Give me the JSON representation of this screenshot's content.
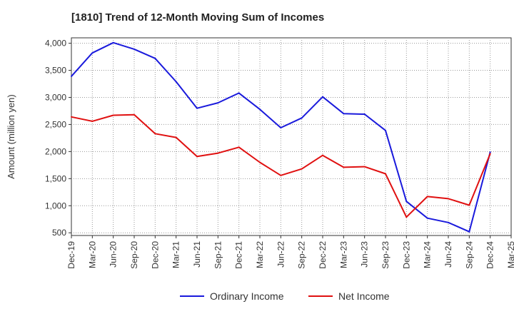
{
  "chart_data": {
    "type": "line",
    "title": "[1810]  Trend of 12-Month Moving Sum of Incomes",
    "xlabel": "",
    "ylabel": "Amount (million yen)",
    "ylim": [
      450,
      4100
    ],
    "yticks": [
      500,
      1000,
      1500,
      2000,
      2500,
      3000,
      3500,
      4000
    ],
    "ytick_labels": [
      "500",
      "1,000",
      "1,500",
      "2,000",
      "2,500",
      "3,000",
      "3,500",
      "4,000"
    ],
    "categories": [
      "Dec-19",
      "Mar-20",
      "Jun-20",
      "Sep-20",
      "Dec-20",
      "Mar-21",
      "Jun-21",
      "Sep-21",
      "Dec-21",
      "Mar-22",
      "Jun-22",
      "Sep-22",
      "Dec-22",
      "Mar-23",
      "Jun-23",
      "Sep-23",
      "Dec-23",
      "Mar-24",
      "Jun-24",
      "Sep-24",
      "Dec-24",
      "Mar-25"
    ],
    "grid": true,
    "legend_position": "bottom",
    "series": [
      {
        "name": "Ordinary Income",
        "color": "#1a1adc",
        "values": [
          3390,
          3820,
          4010,
          3890,
          3720,
          3290,
          2800,
          2900,
          3080,
          2780,
          2440,
          2620,
          3010,
          2700,
          2690,
          2390,
          1080,
          770,
          690,
          520,
          1990,
          null
        ]
      },
      {
        "name": "Net Income",
        "color": "#e01010",
        "values": [
          2640,
          2560,
          2670,
          2680,
          2330,
          2260,
          1910,
          1970,
          2080,
          1800,
          1560,
          1680,
          1930,
          1710,
          1720,
          1590,
          790,
          1170,
          1130,
          1010,
          1960,
          null
        ]
      }
    ]
  }
}
